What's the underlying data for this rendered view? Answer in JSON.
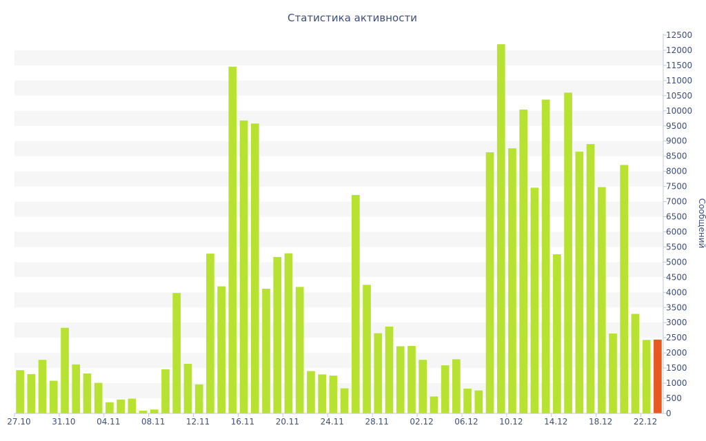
{
  "chart_data": {
    "type": "bar",
    "title": "Статистика активности",
    "ylabel": "Сообщений",
    "xlabel": "",
    "ylim": [
      0,
      12500
    ],
    "yticks": [
      0,
      500,
      1000,
      1500,
      2000,
      2500,
      3000,
      3500,
      4000,
      4500,
      5000,
      5500,
      6000,
      6500,
      7000,
      7500,
      8000,
      8500,
      9000,
      9500,
      10000,
      10500,
      11000,
      11500,
      12000,
      12500
    ],
    "y_axis_side": "right",
    "grid": "alternating horizontal bands",
    "x_tick_labels": [
      "27.10",
      "31.10",
      "04.11",
      "08.11",
      "12.11",
      "16.11",
      "20.11",
      "24.11",
      "28.11",
      "02.12",
      "06.12",
      "10.12",
      "14.12",
      "18.12",
      "22.12"
    ],
    "x_tick_every": 4,
    "bar_color": "#b7e232",
    "highlight_color": "#e65a22",
    "highlight_last": true,
    "values": [
      1430,
      1300,
      1770,
      1080,
      2830,
      1620,
      1320,
      1010,
      370,
      460,
      490,
      90,
      130,
      1460,
      3980,
      1640,
      960,
      5280,
      4200,
      11460,
      9680,
      9580,
      4120,
      5170,
      5290,
      4180,
      1400,
      1290,
      1250,
      830,
      7220,
      4250,
      2650,
      2870,
      2220,
      2230,
      1770,
      560,
      1590,
      1790,
      820,
      760,
      8630,
      12200,
      8760,
      10040,
      7460,
      10370,
      5260,
      10600,
      8650,
      8900,
      7480,
      2640,
      8210,
      3290,
      2430,
      2440
    ]
  }
}
